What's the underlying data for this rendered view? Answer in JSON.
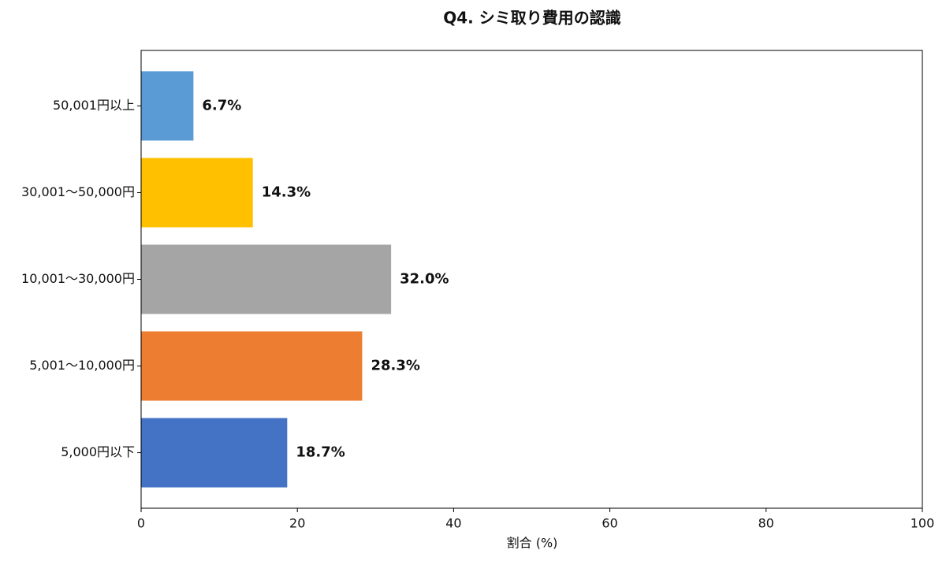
{
  "chart_data": {
    "type": "bar",
    "orientation": "horizontal",
    "title": "Q4. シミ取り費用の認識",
    "categories": [
      "50,001円以上",
      "30,001〜50,000円",
      "10,001〜30,000円",
      "5,001〜10,000円",
      "5,000円以下"
    ],
    "values": [
      6.7,
      14.3,
      32.0,
      28.3,
      18.7
    ],
    "value_labels": [
      "6.7%",
      "14.3%",
      "32.0%",
      "28.3%",
      "18.7%"
    ],
    "colors": [
      "#5b9bd5",
      "#ffc000",
      "#a5a5a5",
      "#ed7d31",
      "#4472c4"
    ],
    "xlabel": "割合 (%)",
    "xlim": [
      0,
      100
    ],
    "xticks": [
      0,
      20,
      40,
      60,
      80,
      100
    ],
    "grid": false
  }
}
